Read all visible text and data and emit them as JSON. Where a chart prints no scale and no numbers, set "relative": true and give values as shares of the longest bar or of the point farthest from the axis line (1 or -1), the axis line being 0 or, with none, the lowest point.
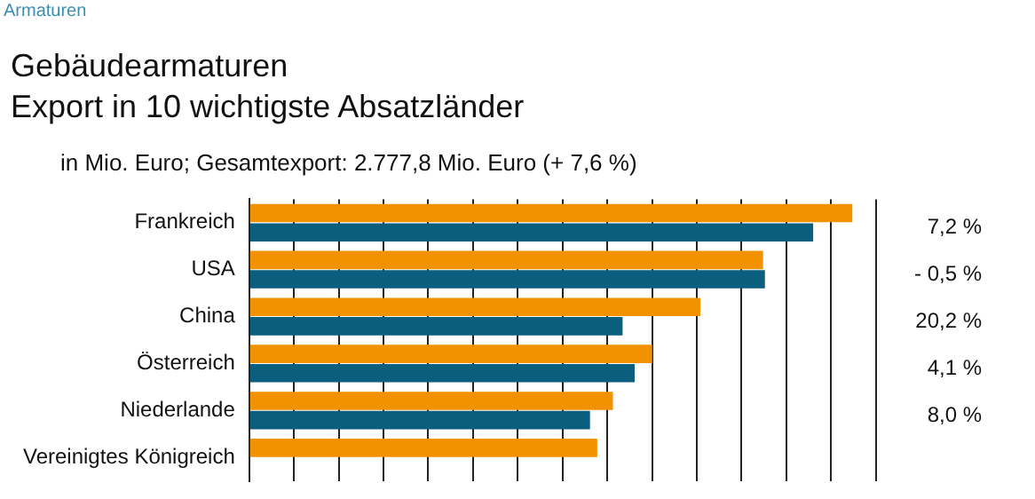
{
  "chart_data": {
    "type": "bar",
    "orientation": "horizontal",
    "relative": true,
    "title": "Gebäudearmaturen\nExport in 10 wichtigste Absatzländer",
    "subtitle": "in Mio. Euro; Gesamtexport: 2.777,8 Mio. Euro (+ 7,6 %)",
    "categories": [
      "Frankreich",
      "USA",
      "China",
      "Österreich",
      "Niederlande",
      "Vereinigtes Königreich"
    ],
    "series": [
      {
        "color": "#f39200",
        "values": [
          1,
          0.852,
          0.748,
          0.668,
          0.603,
          0.577
        ]
      },
      {
        "color": "#0b5e7e",
        "values": [
          0.935,
          0.855,
          0.619,
          0.639,
          0.565,
          null
        ]
      }
    ],
    "annotations": [
      "Armaturen",
      "7,2 %",
      "- 0,5 %",
      "20,2 %",
      "4,1 %",
      "8,0 %"
    ],
    "grid": "x",
    "legend": false
  }
}
